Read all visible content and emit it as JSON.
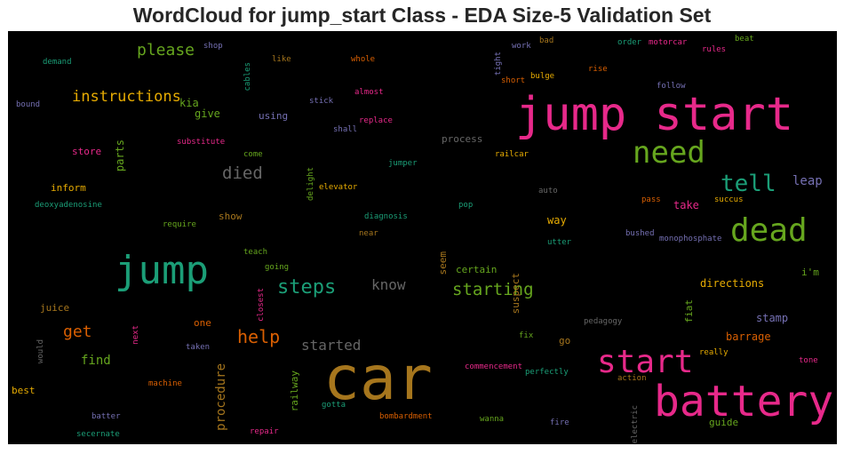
{
  "title": "WordCloud for jump_start Class - EDA Size-5 Validation Set",
  "words": [
    {
      "text": "jump start",
      "color": "#e7298a",
      "rot": false
    },
    {
      "text": "car",
      "color": "#a6761d",
      "rot": false
    },
    {
      "text": "battery",
      "color": "#e7298a",
      "rot": false
    },
    {
      "text": "jump",
      "color": "#1b9e77",
      "rot": false
    },
    {
      "text": "start",
      "color": "#e7298a",
      "rot": false
    },
    {
      "text": "dead",
      "color": "#66a61e",
      "rot": false
    },
    {
      "text": "need",
      "color": "#66a61e",
      "rot": false
    },
    {
      "text": "tell",
      "color": "#1b9e77",
      "rot": false
    },
    {
      "text": "steps",
      "color": "#1b9e77",
      "rot": false
    },
    {
      "text": "help",
      "color": "#d95f02",
      "rot": false
    },
    {
      "text": "starting",
      "color": "#66a61e",
      "rot": false
    },
    {
      "text": "died",
      "color": "#666666",
      "rot": false
    },
    {
      "text": "please",
      "color": "#66a61e",
      "rot": false
    },
    {
      "text": "instructions",
      "color": "#e6ab02",
      "rot": false
    },
    {
      "text": "get",
      "color": "#d95f02",
      "rot": false
    },
    {
      "text": "started",
      "color": "#666666",
      "rot": false
    },
    {
      "text": "know",
      "color": "#666666",
      "rot": false
    },
    {
      "text": "procedure",
      "color": "#a6761d",
      "rot": true
    },
    {
      "text": "leap",
      "color": "#7570b3",
      "rot": false
    },
    {
      "text": "find",
      "color": "#66a61e",
      "rot": false
    },
    {
      "text": "directions",
      "color": "#e6ab02",
      "rot": false
    },
    {
      "text": "barrage",
      "color": "#d95f02",
      "rot": false
    },
    {
      "text": "stamp",
      "color": "#7570b3",
      "rot": false
    },
    {
      "text": "way",
      "color": "#e6ab02",
      "rot": false
    },
    {
      "text": "take",
      "color": "#e7298a",
      "rot": false
    },
    {
      "text": "kia",
      "color": "#66a61e",
      "rot": false
    },
    {
      "text": "give",
      "color": "#66a61e",
      "rot": false
    },
    {
      "text": "using",
      "color": "#7570b3",
      "rot": false
    },
    {
      "text": "store",
      "color": "#e7298a",
      "rot": false
    },
    {
      "text": "inform",
      "color": "#e6ab02",
      "rot": false
    },
    {
      "text": "show",
      "color": "#a6761d",
      "rot": false
    },
    {
      "text": "process",
      "color": "#666666",
      "rot": false
    },
    {
      "text": "parts",
      "color": "#66a61e",
      "rot": true
    },
    {
      "text": "railway",
      "color": "#66a61e",
      "rot": true
    },
    {
      "text": "suspect",
      "color": "#a6761d",
      "rot": true
    },
    {
      "text": "fiat",
      "color": "#66a61e",
      "rot": true
    },
    {
      "text": "seem",
      "color": "#a6761d",
      "rot": true
    },
    {
      "text": "certain",
      "color": "#66a61e",
      "rot": false
    },
    {
      "text": "juice",
      "color": "#a6761d",
      "rot": false
    },
    {
      "text": "one",
      "color": "#d95f02",
      "rot": false
    },
    {
      "text": "best",
      "color": "#e6ab02",
      "rot": false
    },
    {
      "text": "guide",
      "color": "#66a61e",
      "rot": false
    },
    {
      "text": "go",
      "color": "#a6761d",
      "rot": false
    },
    {
      "text": "i'm",
      "color": "#66a61e",
      "rot": false
    },
    {
      "text": "shop",
      "color": "#7570b3",
      "rot": false
    },
    {
      "text": "demand",
      "color": "#1b9e77",
      "rot": false
    },
    {
      "text": "cables",
      "color": "#1b9e77",
      "rot": true
    },
    {
      "text": "like",
      "color": "#a6761d",
      "rot": false
    },
    {
      "text": "whole",
      "color": "#d95f02",
      "rot": false
    },
    {
      "text": "work",
      "color": "#7570b3",
      "rot": false
    },
    {
      "text": "tight",
      "color": "#7570b3",
      "rot": true
    },
    {
      "text": "bad",
      "color": "#a6761d",
      "rot": false
    },
    {
      "text": "order",
      "color": "#1b9e77",
      "rot": false
    },
    {
      "text": "motorcar",
      "color": "#e7298a",
      "rot": false
    },
    {
      "text": "beat",
      "color": "#66a61e",
      "rot": false
    },
    {
      "text": "rules",
      "color": "#e7298a",
      "rot": false
    },
    {
      "text": "bound",
      "color": "#7570b3",
      "rot": false
    },
    {
      "text": "almost",
      "color": "#e7298a",
      "rot": false
    },
    {
      "text": "bulge",
      "color": "#e6ab02",
      "rot": false
    },
    {
      "text": "short",
      "color": "#d95f02",
      "rot": false
    },
    {
      "text": "rise",
      "color": "#d95f02",
      "rot": false
    },
    {
      "text": "follow",
      "color": "#7570b3",
      "rot": false
    },
    {
      "text": "stick",
      "color": "#7570b3",
      "rot": false
    },
    {
      "text": "replace",
      "color": "#e7298a",
      "rot": false
    },
    {
      "text": "shall",
      "color": "#7570b3",
      "rot": false
    },
    {
      "text": "substitute",
      "color": "#e7298a",
      "rot": false
    },
    {
      "text": "come",
      "color": "#66a61e",
      "rot": false
    },
    {
      "text": "delight",
      "color": "#66a61e",
      "rot": true
    },
    {
      "text": "railcar",
      "color": "#e6ab02",
      "rot": false
    },
    {
      "text": "jumper",
      "color": "#1b9e77",
      "rot": false
    },
    {
      "text": "elevator",
      "color": "#e6ab02",
      "rot": false
    },
    {
      "text": "auto",
      "color": "#666666",
      "rot": false
    },
    {
      "text": "pass",
      "color": "#d95f02",
      "rot": false
    },
    {
      "text": "succus",
      "color": "#e6ab02",
      "rot": false
    },
    {
      "text": "deoxyadenosine",
      "color": "#1b9e77",
      "rot": false
    },
    {
      "text": "pop",
      "color": "#1b9e77",
      "rot": false
    },
    {
      "text": "require",
      "color": "#66a61e",
      "rot": false
    },
    {
      "text": "diagnosis",
      "color": "#1b9e77",
      "rot": false
    },
    {
      "text": "near",
      "color": "#a6761d",
      "rot": false
    },
    {
      "text": "bushed",
      "color": "#7570b3",
      "rot": false
    },
    {
      "text": "monophosphate",
      "color": "#7570b3",
      "rot": false
    },
    {
      "text": "utter",
      "color": "#1b9e77",
      "rot": false
    },
    {
      "text": "teach",
      "color": "#66a61e",
      "rot": false
    },
    {
      "text": "going",
      "color": "#66a61e",
      "rot": false
    },
    {
      "text": "closest",
      "color": "#e7298a",
      "rot": true
    },
    {
      "text": "pedagogy",
      "color": "#666666",
      "rot": false
    },
    {
      "text": "next",
      "color": "#e7298a",
      "rot": true
    },
    {
      "text": "would",
      "color": "#666666",
      "rot": true
    },
    {
      "text": "taken",
      "color": "#7570b3",
      "rot": false
    },
    {
      "text": "fix",
      "color": "#66a61e",
      "rot": false
    },
    {
      "text": "really",
      "color": "#e6ab02",
      "rot": false
    },
    {
      "text": "tone",
      "color": "#e7298a",
      "rot": false
    },
    {
      "text": "machine",
      "color": "#d95f02",
      "rot": false
    },
    {
      "text": "commencement",
      "color": "#e7298a",
      "rot": false
    },
    {
      "text": "perfectly",
      "color": "#1b9e77",
      "rot": false
    },
    {
      "text": "action",
      "color": "#a6761d",
      "rot": false
    },
    {
      "text": "gotta",
      "color": "#1b9e77",
      "rot": false
    },
    {
      "text": "batter",
      "color": "#7570b3",
      "rot": false
    },
    {
      "text": "bombardment",
      "color": "#d95f02",
      "rot": false
    },
    {
      "text": "wanna",
      "color": "#66a61e",
      "rot": false
    },
    {
      "text": "electric",
      "color": "#666666",
      "rot": true
    },
    {
      "text": "repair",
      "color": "#e7298a",
      "rot": false
    },
    {
      "text": "fire",
      "color": "#7570b3",
      "rot": false
    },
    {
      "text": "secernate",
      "color": "#1b9e77",
      "rot": false
    }
  ]
}
